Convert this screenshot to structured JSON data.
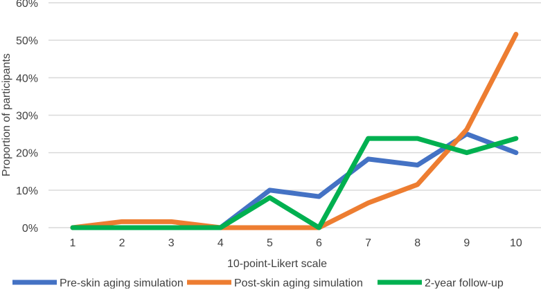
{
  "chart_data": {
    "type": "line",
    "title": "",
    "xlabel": "10-point-Likert scale",
    "ylabel": "Proportion of participants",
    "categories": [
      "1",
      "2",
      "3",
      "4",
      "5",
      "6",
      "7",
      "8",
      "9",
      "10"
    ],
    "ylim": [
      0,
      60
    ],
    "yticks": [
      "0%",
      "10%",
      "20%",
      "30%",
      "40%",
      "50%",
      "60%"
    ],
    "grid": true,
    "legend_placement": "bottom",
    "series": [
      {
        "name": "Pre-skin aging simulation",
        "color": "#4472C4",
        "values": [
          0,
          0,
          0,
          0,
          10,
          8.3,
          18.3,
          16.7,
          25,
          20
        ]
      },
      {
        "name": "Post-skin aging simulation",
        "color": "#ED7D31",
        "values": [
          0,
          1.6,
          1.6,
          0,
          0,
          0,
          6.6,
          11.5,
          26.2,
          51.6
        ]
      },
      {
        "name": "2-year follow-up",
        "color": "#00B050",
        "values": [
          0,
          0,
          0,
          0,
          8,
          0,
          23.8,
          23.8,
          20,
          23.8
        ]
      }
    ]
  }
}
